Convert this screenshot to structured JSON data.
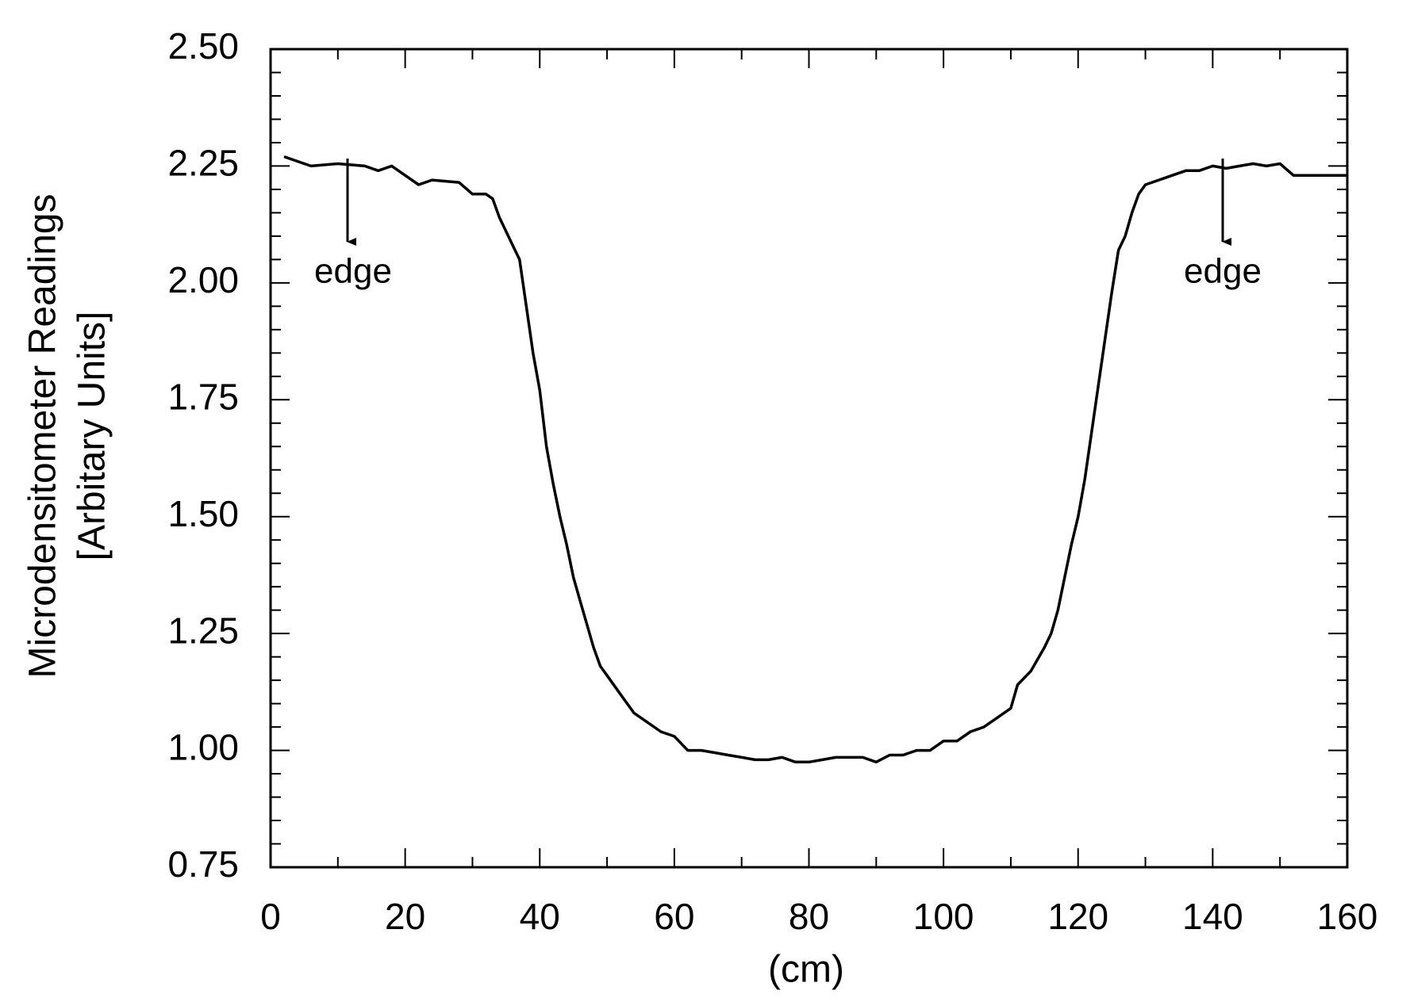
{
  "chart_data": {
    "type": "line",
    "x_label": "(cm)",
    "y_label": [
      "Microdensitometer Readings",
      "[Arbitary Units]"
    ],
    "annotations": [
      "edge",
      "edge"
    ],
    "xlim": [
      0,
      160
    ],
    "xticks": [
      0,
      20,
      40,
      60,
      80,
      100,
      120,
      140,
      160
    ],
    "ylim": [
      0.75,
      2.5
    ],
    "yticks": [
      {
        "value": 0.75,
        "label": "0.75"
      },
      {
        "value": 1.0,
        "label": "1.00"
      },
      {
        "value": 1.25,
        "label": "1.25"
      },
      {
        "value": 1.5,
        "label": "1.50"
      },
      {
        "value": 1.75,
        "label": "1.75"
      },
      {
        "value": 2.0,
        "label": "2.00"
      },
      {
        "value": 2.25,
        "label": "2.25"
      },
      {
        "value": 2.5,
        "label": "2.50"
      }
    ],
    "color": "#000000",
    "x": [
      2,
      4,
      6,
      10,
      14,
      16,
      18,
      20,
      22,
      24,
      28,
      30,
      32,
      33,
      34,
      36,
      37,
      38,
      39,
      40,
      41,
      42,
      43,
      44,
      45,
      46,
      47,
      48,
      49,
      50,
      52,
      54,
      56,
      58,
      60,
      62,
      64,
      66,
      68,
      70,
      72,
      74,
      76,
      78,
      80,
      82,
      84,
      86,
      88,
      90,
      92,
      94,
      96,
      98,
      100,
      102,
      104,
      106,
      108,
      110,
      111,
      113,
      115,
      116,
      117,
      118,
      119,
      120,
      121,
      122,
      123,
      124,
      125,
      126,
      127,
      128,
      129,
      130,
      132,
      134,
      136,
      138,
      140,
      142,
      144,
      146,
      148,
      150,
      152,
      156,
      160
    ],
    "values": [
      2.27,
      2.26,
      2.25,
      2.255,
      2.25,
      2.24,
      2.25,
      2.23,
      2.21,
      2.22,
      2.215,
      2.19,
      2.19,
      2.18,
      2.14,
      2.08,
      2.05,
      1.95,
      1.85,
      1.77,
      1.65,
      1.57,
      1.5,
      1.44,
      1.37,
      1.32,
      1.27,
      1.22,
      1.18,
      1.16,
      1.12,
      1.08,
      1.06,
      1.04,
      1.03,
      1.0,
      1.0,
      0.995,
      0.99,
      0.985,
      0.98,
      0.98,
      0.985,
      0.975,
      0.975,
      0.98,
      0.985,
      0.985,
      0.985,
      0.975,
      0.99,
      0.99,
      1.0,
      1.0,
      1.02,
      1.02,
      1.04,
      1.05,
      1.07,
      1.09,
      1.14,
      1.17,
      1.22,
      1.25,
      1.3,
      1.37,
      1.44,
      1.5,
      1.58,
      1.68,
      1.78,
      1.88,
      1.98,
      2.07,
      2.1,
      2.15,
      2.19,
      2.21,
      2.22,
      2.23,
      2.24,
      2.24,
      2.25,
      2.245,
      2.25,
      2.255,
      2.25,
      2.255,
      2.23,
      2.23,
      2.23
    ]
  }
}
